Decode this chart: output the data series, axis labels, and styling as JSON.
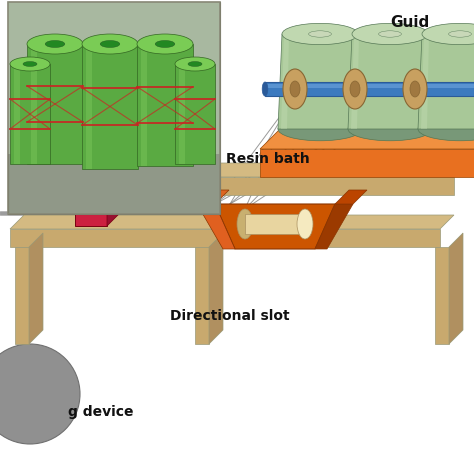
{
  "background_color": "#ffffff",
  "labels": {
    "guide": "Guid",
    "resin_bath": "Resin bath",
    "directional_slot": "Directional slot",
    "winding_device": "g device"
  },
  "colors": {
    "frame_beam": "#C8A96E",
    "frame_beam_top": "#D4BA82",
    "frame_beam_side": "#B09060",
    "resin_bath_body": "#CC5500",
    "resin_bath_inner": "#E06020",
    "resin_bath_dark": "#9B3A00",
    "roller": "#E8D5A0",
    "roller_top": "#F5EAC0",
    "roller_dark": "#C8B070",
    "fiber_spool_body": "#A8C898",
    "fiber_spool_top": "#C0D8B0",
    "fiber_spool_dark": "#789878",
    "orange_platform": "#E87020",
    "orange_platform_top": "#F09040",
    "guide_rod": "#3B7ABF",
    "guide_rod_dark": "#2A5A99",
    "guide_disk": "#C8A060",
    "guide_disk_dark": "#A07840",
    "directional_block": "#CC2040",
    "directional_block_top": "#EE4060",
    "directional_block_side": "#991030",
    "fiber_lines": "#888888",
    "photo_bg_light": "#B8C8A8",
    "photo_bg_dark": "#889878",
    "winding_circle": "#909090",
    "label_font_size": 10
  }
}
